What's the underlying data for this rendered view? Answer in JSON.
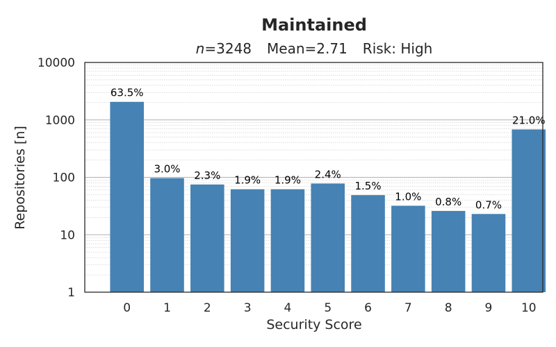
{
  "chart_data": {
    "type": "bar",
    "title": "Maintained",
    "subtitle": {
      "n_label": "n",
      "n_value": "=3248",
      "mean": "Mean=2.71",
      "risk": "Risk: High"
    },
    "xlabel": "Security Score",
    "ylabel": "Repositories [n]",
    "y_scale": "log",
    "ylim": [
      1,
      10000
    ],
    "y_ticks": [
      1,
      10,
      100,
      1000,
      10000
    ],
    "y_tick_labels": [
      "1",
      "10",
      "100",
      "1000",
      "10000"
    ],
    "categories": [
      "0",
      "1",
      "2",
      "3",
      "4",
      "5",
      "6",
      "7",
      "8",
      "9",
      "10"
    ],
    "values": [
      2062,
      97,
      75,
      62,
      62,
      78,
      49,
      32,
      26,
      23,
      682
    ],
    "data_labels": [
      "63.5%",
      "3.0%",
      "2.3%",
      "1.9%",
      "1.9%",
      "2.4%",
      "1.5%",
      "1.0%",
      "0.8%",
      "0.7%",
      "21.0%"
    ],
    "grid": true,
    "bar_color": "#4682b4"
  }
}
